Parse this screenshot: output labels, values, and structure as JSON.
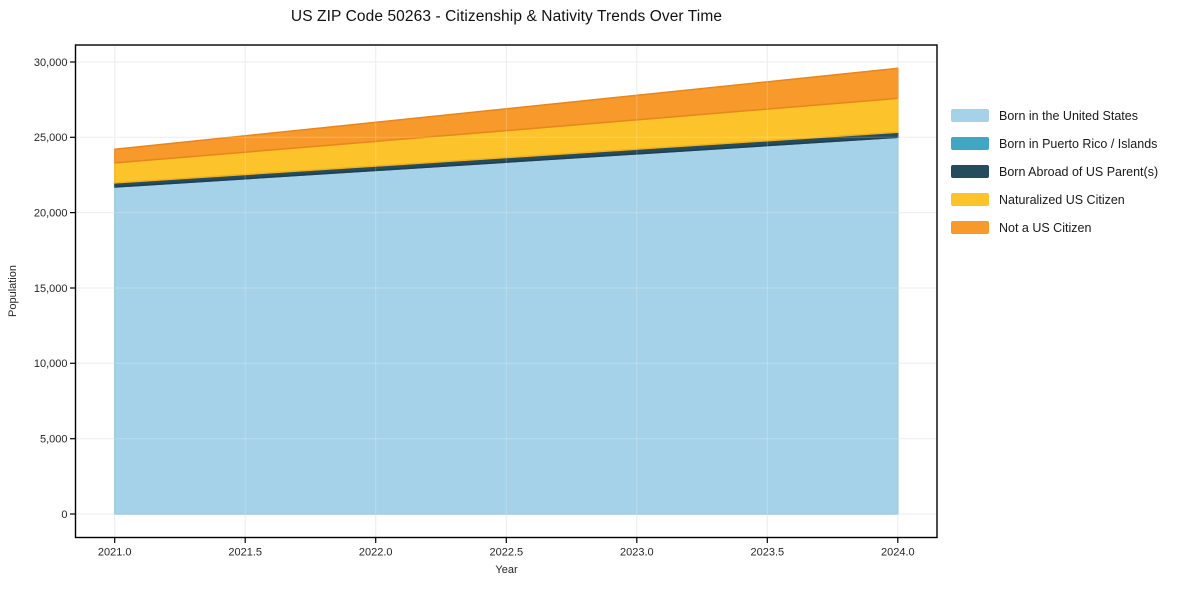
{
  "chart_data": {
    "type": "area",
    "stacked": true,
    "title": "US ZIP Code 50263 - Citizenship & Nativity Trends Over Time",
    "xlabel": "Year",
    "ylabel": "Population",
    "x": [
      2021.0,
      2024.0
    ],
    "series": [
      {
        "name": "Born in the United States",
        "values": [
          21700,
          25000
        ],
        "fill": "#A5D2E8",
        "edge": "#90C4DC"
      },
      {
        "name": "Born in Puerto Rico / Islands",
        "values": [
          0,
          0
        ],
        "fill": "#41A6C4",
        "edge": "#3493B1"
      },
      {
        "name": "Born Abroad of US Parent(s)",
        "values": [
          270,
          330
        ],
        "fill": "#254B5F",
        "edge": "#1E3F51"
      },
      {
        "name": "Naturalized US Citizen",
        "values": [
          1330,
          2260
        ],
        "fill": "#FCC32B",
        "edge": "#EFB118"
      },
      {
        "name": "Not a US Citizen",
        "values": [
          900,
          1990
        ],
        "fill": "#F8992B",
        "edge": "#E8861C"
      }
    ],
    "totals": {
      "2021": 24200,
      "2024": 29580
    },
    "xticks": [
      2021.0,
      2021.5,
      2022.0,
      2022.5,
      2023.0,
      2023.5,
      2024.0
    ],
    "xtick_labels": [
      "2021.0",
      "2021.5",
      "2022.0",
      "2022.5",
      "2023.0",
      "2023.5",
      "2024.0"
    ],
    "yticks": [
      0,
      5000,
      10000,
      15000,
      20000,
      25000,
      30000
    ],
    "ytick_labels": [
      "0",
      "5,000",
      "10,000",
      "15,000",
      "20,000",
      "25,000",
      "30,000"
    ],
    "xlim": [
      2020.85,
      2024.15
    ],
    "ylim": [
      -1560,
      31125
    ],
    "grid": true,
    "legend_position": "outside-right",
    "colors": {
      "grid": "#e9e9e9",
      "frame": "#000000",
      "tick_text": "#262626",
      "background": "#ffffff"
    }
  }
}
